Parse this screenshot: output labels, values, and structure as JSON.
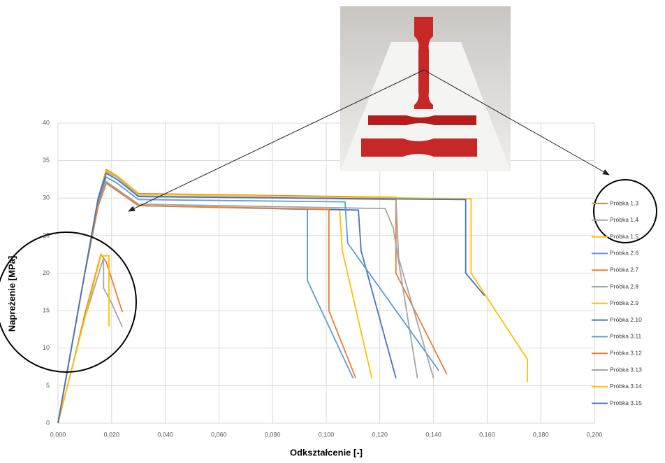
{
  "chart_data": {
    "type": "line",
    "x_label": "Odkształcenie [-]",
    "y_label": "Napreżenie [MPa]",
    "xlim": [
      0,
      0.2
    ],
    "ylim": [
      0,
      40
    ],
    "xticks": [
      {
        "value": 0,
        "label": "0,000"
      },
      {
        "value": 0.02,
        "label": "0,020"
      },
      {
        "value": 0.04,
        "label": "0,040"
      },
      {
        "value": 0.06,
        "label": "0,060"
      },
      {
        "value": 0.08,
        "label": "0,080"
      },
      {
        "value": 0.1,
        "label": "0,100"
      },
      {
        "value": 0.12,
        "label": "0,120"
      },
      {
        "value": 0.14,
        "label": "0,140"
      },
      {
        "value": 0.16,
        "label": "0,160"
      },
      {
        "value": 0.18,
        "label": "0,180"
      },
      {
        "value": 0.2,
        "label": "0,200"
      }
    ],
    "yticks": [
      0,
      5,
      10,
      15,
      20,
      25,
      30,
      35,
      40
    ],
    "grid": true,
    "legend": "right",
    "series": [
      {
        "name": "Próbka 1.3",
        "color": "#ed7d31",
        "x": [
          0,
          0.005,
          0.01,
          0.016,
          0.018,
          0.024
        ],
        "values": [
          0,
          7,
          14.5,
          22.5,
          21.5,
          14.8
        ]
      },
      {
        "name": "Próbka 1.4",
        "color": "#a5a5a5",
        "x": [
          0,
          0.005,
          0.01,
          0.017,
          0.017,
          0.02,
          0.024
        ],
        "values": [
          0,
          7,
          14,
          22,
          18,
          16,
          12.8
        ]
      },
      {
        "name": "Próbka 1.5",
        "color": "#ffc000",
        "x": [
          0,
          0.005,
          0.01,
          0.016,
          0.019,
          0.019
        ],
        "values": [
          0,
          7,
          14,
          22.3,
          22.3,
          12.9
        ]
      },
      {
        "name": "Próbka 2.6",
        "color": "#5b9bd5",
        "x": [
          0,
          0.005,
          0.01,
          0.015,
          0.018,
          0.022,
          0.03,
          0.093,
          0.093,
          0.11
        ],
        "values": [
          0,
          10,
          20,
          29,
          32,
          31,
          29,
          28.5,
          19,
          6
        ]
      },
      {
        "name": "Próbka 2.7",
        "color": "#ed7d31",
        "x": [
          0,
          0.005,
          0.01,
          0.015,
          0.018,
          0.022,
          0.03,
          0.126,
          0.126,
          0.145
        ],
        "values": [
          0,
          10,
          20,
          30,
          33.8,
          33,
          30.6,
          30.1,
          20,
          6.5
        ]
      },
      {
        "name": "Próbka 2.8",
        "color": "#a5a5a5",
        "x": [
          0,
          0.005,
          0.01,
          0.015,
          0.018,
          0.022,
          0.03,
          0.122,
          0.125,
          0.134
        ],
        "values": [
          0,
          10,
          20,
          29,
          32.2,
          31.2,
          29.2,
          28.6,
          26,
          6
        ]
      },
      {
        "name": "Próbka 2.9",
        "color": "#ffc000",
        "x": [
          0,
          0.005,
          0.01,
          0.015,
          0.018,
          0.022,
          0.03,
          0.105,
          0.106,
          0.117
        ],
        "values": [
          0,
          10,
          20,
          29,
          32,
          31,
          29,
          28.5,
          23,
          6
        ]
      },
      {
        "name": "Próbka 2.10",
        "color": "#4472c4",
        "x": [
          0,
          0.005,
          0.01,
          0.015,
          0.018,
          0.022,
          0.03,
          0.112,
          0.113,
          0.126
        ],
        "values": [
          0,
          10,
          20,
          29,
          32,
          31,
          29,
          28.4,
          23,
          6
        ]
      },
      {
        "name": "Próbka 3.11",
        "color": "#5b9bd5",
        "x": [
          0,
          0.005,
          0.01,
          0.015,
          0.018,
          0.022,
          0.03,
          0.107,
          0.108,
          0.142
        ],
        "values": [
          0,
          10,
          20,
          29.5,
          32.8,
          32,
          29.8,
          29.5,
          24,
          7
        ]
      },
      {
        "name": "Próbka 3.12",
        "color": "#ed7d31",
        "x": [
          0,
          0.005,
          0.01,
          0.015,
          0.018,
          0.022,
          0.03,
          0.101,
          0.101,
          0.111
        ],
        "values": [
          0,
          10,
          20,
          29,
          32,
          31,
          29,
          28.5,
          15,
          6
        ]
      },
      {
        "name": "Próbka 3.13",
        "color": "#a5a5a5",
        "x": [
          0,
          0.005,
          0.01,
          0.015,
          0.018,
          0.022,
          0.03,
          0.126,
          0.127,
          0.14
        ],
        "values": [
          0,
          10,
          20,
          30,
          33.5,
          32.8,
          30.3,
          29.8,
          22,
          6
        ]
      },
      {
        "name": "Próbka 3.14",
        "color": "#ffc000",
        "x": [
          0,
          0.005,
          0.01,
          0.015,
          0.018,
          0.022,
          0.03,
          0.154,
          0.154,
          0.175,
          0.175
        ],
        "values": [
          0,
          10,
          20,
          30,
          33.6,
          33,
          30.5,
          29.9,
          20,
          8.5,
          5.5
        ]
      },
      {
        "name": "Próbka 3.15",
        "color": "#4472c4",
        "x": [
          0,
          0.005,
          0.01,
          0.015,
          0.018,
          0.022,
          0.03,
          0.152,
          0.152,
          0.159
        ],
        "values": [
          0,
          10,
          20,
          30,
          33.3,
          32.5,
          30.2,
          29.8,
          20,
          17
        ]
      }
    ]
  }
}
